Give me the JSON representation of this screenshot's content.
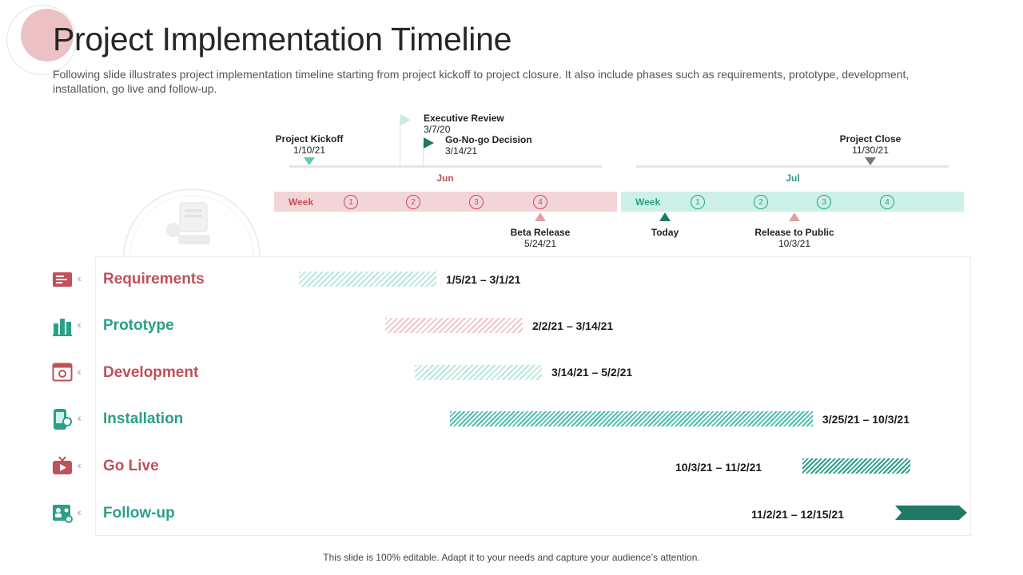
{
  "slide": {
    "title": "Project Implementation Timeline",
    "subtitle": "Following slide illustrates project implementation timeline starting from project kickoff to project closure. It also include phases such as requirements, prototype, development, installation, go live and follow-up.",
    "footer": "This slide is 100% editable. Adapt it to your needs and capture your audience’s attention."
  },
  "colors": {
    "pink": "#c0505a",
    "teal": "#2aa088",
    "dark_teal": "#1e7a66",
    "light_pink": "#f3d5d7",
    "light_mint": "#cdf0e8"
  },
  "milestones_top": [
    {
      "label": "Project Kickoff",
      "date": "1/10/21"
    },
    {
      "label": "Executive Review",
      "date": "3/7/20"
    },
    {
      "label": "Go-No-go  Decision",
      "date": "3/14/21"
    },
    {
      "label": "Project Close",
      "date": "11/30/21"
    }
  ],
  "months": [
    {
      "name": "Jun",
      "week_label": "Week",
      "weeks": [
        "1",
        "2",
        "3",
        "4"
      ]
    },
    {
      "name": "Jul",
      "week_label": "Week",
      "weeks": [
        "1",
        "2",
        "3",
        "4"
      ]
    }
  ],
  "milestones_bottom": [
    {
      "label": "Beta Release",
      "date": "5/24/21"
    },
    {
      "label": "Today",
      "date": ""
    },
    {
      "label": "Release to Public",
      "date": "10/3/21"
    }
  ],
  "phases": [
    {
      "name": "Requirements",
      "icon": "document-list-icon",
      "range": "1/5/21 – 3/1/21",
      "color": "#c0505a"
    },
    {
      "name": "Prototype",
      "icon": "building-chart-icon",
      "range": "2/2/21 – 3/14/21",
      "color": "#2aa088"
    },
    {
      "name": "Development",
      "icon": "browser-gear-icon",
      "range": "3/14/21 – 5/2/21",
      "color": "#c0505a"
    },
    {
      "name": "Installation",
      "icon": "mobile-settings-icon",
      "range": "3/25/21 – 10/3/21",
      "color": "#2aa088"
    },
    {
      "name": "Go Live",
      "icon": "tv-play-icon",
      "range": "10/3/21 – 11/2/21",
      "color": "#c0505a"
    },
    {
      "name": "Follow-up",
      "icon": "user-network-icon",
      "range": "11/2/21 – 12/15/21",
      "color": "#2aa088"
    }
  ]
}
